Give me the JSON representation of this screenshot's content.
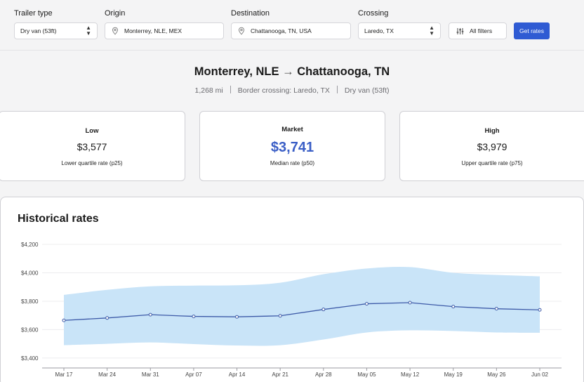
{
  "filters": {
    "trailer_type": {
      "label": "Trailer type",
      "value": "Dry van (53ft)"
    },
    "origin": {
      "label": "Origin",
      "value": "Monterrey, NLE, MEX"
    },
    "destination": {
      "label": "Destination",
      "value": "Chattanooga, TN, USA"
    },
    "crossing": {
      "label": "Crossing",
      "value": "Laredo, TX"
    },
    "all_filters_label": "All filters",
    "get_rates_label": "Get rates"
  },
  "route": {
    "origin": "Monterrey, NLE",
    "arrow": "→",
    "destination": "Chattanooga, TN",
    "distance": "1,268 mi",
    "border": "Border crossing: Laredo, TX",
    "trailer": "Dry van (53ft)"
  },
  "cards": {
    "low": {
      "title": "Low",
      "value": "$3,577",
      "sub": "Lower quartile rate (p25)"
    },
    "market": {
      "title": "Market",
      "value": "$3,741",
      "sub": "Median rate (p50)"
    },
    "high": {
      "title": "High",
      "value": "$3,979",
      "sub": "Upper quartile rate (p75)"
    }
  },
  "historical": {
    "title": "Historical rates"
  },
  "colors": {
    "accent": "#2f5bd3",
    "market_value": "#3a5ec6",
    "band": "#c9e4f8",
    "line": "#3d5aa8"
  },
  "chart_data": {
    "type": "area",
    "x": [
      "Mar 17",
      "Mar 24",
      "Mar 31",
      "Apr 07",
      "Apr 14",
      "Apr 21",
      "Apr 28",
      "May 05",
      "May 12",
      "May 19",
      "May 26",
      "Jun 02"
    ],
    "series": [
      {
        "values": [
          3665,
          3682,
          3705,
          3693,
          3690,
          3697,
          3742,
          3782,
          3790,
          3762,
          3747,
          3739
        ]
      }
    ],
    "band_high": [
      3845,
      3880,
      3905,
      3910,
      3912,
      3930,
      3990,
      4030,
      4040,
      4000,
      3985,
      3975
    ],
    "band_low": [
      3490,
      3500,
      3510,
      3498,
      3488,
      3490,
      3530,
      3580,
      3595,
      3590,
      3580,
      3578
    ],
    "yticks": [
      "$4,200",
      "$4,000",
      "$3,800",
      "$3,600",
      "$3,400"
    ],
    "ytick_values": [
      4200,
      4000,
      3800,
      3600,
      3400
    ],
    "ylim": [
      3330,
      4220
    ],
    "grid": true
  }
}
